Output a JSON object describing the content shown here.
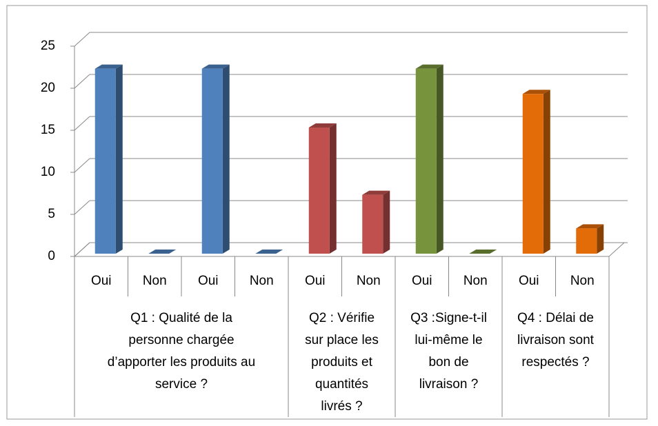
{
  "chart_data": {
    "type": "bar3d",
    "groups": [
      {
        "label": "Q1 : Qualité de la\npersonne chargée\nd’apporter les produits au\nservice ?",
        "color": "#4f81bd",
        "categories": [
          "Oui",
          "Non",
          "Oui",
          "Non"
        ],
        "values": [
          22,
          0,
          22,
          0
        ]
      },
      {
        "label": "Q2 : Vérifie\nsur place les\nproduits et\nquantités\nlivrés ?",
        "color": "#c0504d",
        "categories": [
          "Oui",
          "Non"
        ],
        "values": [
          15,
          7
        ]
      },
      {
        "label": "Q3 :Signe-t-il\nlui-même le\nbon de\nlivraison ?",
        "color": "#77933c",
        "categories": [
          "Oui",
          "Non"
        ],
        "values": [
          22,
          0
        ]
      },
      {
        "label": "Q4 : Délai de\nlivraison sont\nrespectés ?",
        "color": "#e36c09",
        "categories": [
          "Oui",
          "Non"
        ],
        "values": [
          19,
          3
        ]
      }
    ],
    "ylim": [
      0,
      25
    ],
    "yticks": [
      0,
      5,
      10,
      15,
      20,
      25
    ],
    "grid": true
  }
}
